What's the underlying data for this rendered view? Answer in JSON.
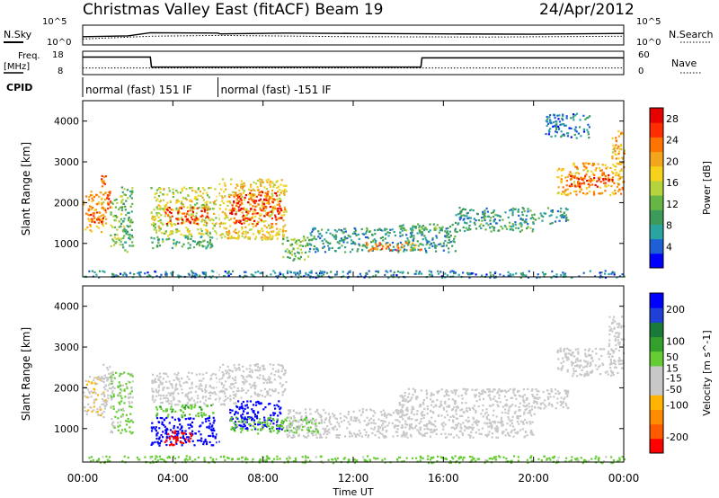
{
  "header": {
    "title": "Christmas Valley East (fitACF) Beam 19",
    "date": "24/Apr/2012"
  },
  "noise_panel": {
    "left_label": "N.Sky",
    "right_label": "N.Search",
    "tick_high": "10^5",
    "tick_low": "10^0"
  },
  "freq_panel": {
    "left_label": "Freq.",
    "unit_label": "[MHz]",
    "tick_high": "18",
    "tick_low": "8",
    "right_label": "Nave",
    "right_tick_high": "60",
    "right_tick_low": "0"
  },
  "cpid": {
    "label": "CPID",
    "segments": [
      {
        "label": "normal (fast) 151 IF",
        "start_hour": 0.0,
        "end_hour": 6.0
      },
      {
        "label": "normal (fast) -151 IF",
        "start_hour": 6.0,
        "end_hour": 24.0
      }
    ]
  },
  "xaxis": {
    "label": "Time UT",
    "range_hours": [
      0,
      24
    ],
    "tick_hours": [
      0,
      4,
      8,
      12,
      16,
      20,
      24
    ],
    "tick_labels": [
      "00:00",
      "04:00",
      "08:00",
      "12:00",
      "16:00",
      "20:00",
      "00:00"
    ]
  },
  "panels": [
    {
      "name": "power",
      "ylabel": "Slant Range [km]"
    },
    {
      "name": "velocity",
      "ylabel": "Slant Range [km]"
    }
  ],
  "colors": {
    "power_scale": [
      "#0000ff",
      "#1f5fd6",
      "#2aa4a0",
      "#3c9a5a",
      "#66b646",
      "#b5d33c",
      "#f6d31a",
      "#f3a51b",
      "#ff7400",
      "#ff2d00",
      "#e60000"
    ],
    "velocity_scale": [
      "#ff0000",
      "#ff5a00",
      "#ff8c00",
      "#ffb400",
      "#c8c8c8",
      "#c8c8c8",
      "#66cc33",
      "#33a02c",
      "#1a7a3a",
      "#1f3fd6",
      "#0000ff"
    ]
  },
  "chart_data": {
    "type": "heatmap",
    "title": "Christmas Valley East (fitACF) Beam 19",
    "xlabel": "Time UT",
    "x_unit": "hours UT",
    "xlim": [
      0,
      24
    ],
    "ylabel": "Slant Range [km]",
    "ylim": [
      180,
      4500
    ],
    "y_ticks": [
      1000,
      2000,
      3000,
      4000
    ],
    "panels": [
      {
        "quantity": "Power",
        "colorbar_label": "Power [dB]",
        "colorbar_ticks": [
          4,
          8,
          12,
          16,
          20,
          24,
          28
        ],
        "colorbar_range": [
          0,
          30
        ],
        "regions": [
          {
            "t0": 0.0,
            "t1": 1.0,
            "r0": 1300,
            "r1": 2300,
            "value": 20
          },
          {
            "t0": 0.3,
            "t1": 0.9,
            "r0": 1500,
            "r1": 1800,
            "value": 26
          },
          {
            "t0": 0.8,
            "t1": 1.2,
            "r0": 1700,
            "r1": 2700,
            "value": 24
          },
          {
            "t0": 1.2,
            "t1": 1.8,
            "r0": 900,
            "r1": 2200,
            "value": 14
          },
          {
            "t0": 1.7,
            "t1": 2.2,
            "r0": 800,
            "r1": 2400,
            "value": 10
          },
          {
            "t0": 3.0,
            "t1": 6.0,
            "r0": 1200,
            "r1": 2400,
            "value": 16
          },
          {
            "t0": 3.6,
            "t1": 5.6,
            "r0": 1500,
            "r1": 1900,
            "value": 26
          },
          {
            "t0": 3.0,
            "t1": 6.0,
            "r0": 900,
            "r1": 1200,
            "value": 10
          },
          {
            "t0": 6.0,
            "t1": 9.0,
            "r0": 1100,
            "r1": 2600,
            "value": 18
          },
          {
            "t0": 6.5,
            "t1": 8.8,
            "r0": 1500,
            "r1": 2300,
            "value": 26
          },
          {
            "t0": 8.8,
            "t1": 10.0,
            "r0": 600,
            "r1": 1200,
            "value": 12
          },
          {
            "t0": 10.0,
            "t1": 16.5,
            "r0": 800,
            "r1": 1400,
            "value": 8
          },
          {
            "t0": 12.5,
            "t1": 15.0,
            "r0": 850,
            "r1": 1050,
            "value": 22
          },
          {
            "t0": 14.0,
            "t1": 20.0,
            "r0": 1300,
            "r1": 1500,
            "value": 10
          },
          {
            "t0": 16.5,
            "t1": 21.5,
            "r0": 1500,
            "r1": 1900,
            "value": 8
          },
          {
            "t0": 21.0,
            "t1": 24.0,
            "r0": 2200,
            "r1": 3000,
            "value": 20
          },
          {
            "t0": 21.5,
            "t1": 23.5,
            "r0": 2400,
            "r1": 2700,
            "value": 26
          },
          {
            "t0": 23.4,
            "t1": 24.0,
            "r0": 3000,
            "r1": 3800,
            "value": 20
          },
          {
            "t0": 20.5,
            "t1": 22.5,
            "r0": 3600,
            "r1": 4200,
            "value": 6
          },
          {
            "t0": 0.0,
            "t1": 24.0,
            "r0": 180,
            "r1": 350,
            "value": 6
          }
        ]
      },
      {
        "quantity": "Velocity",
        "colorbar_label": "Velocity [m s^-1]",
        "colorbar_ticks": [
          -200,
          -100,
          -50,
          -15,
          15,
          50,
          100,
          200
        ],
        "colorbar_range": [
          -250,
          250
        ],
        "regions": [
          {
            "t0": 0.0,
            "t1": 1.0,
            "r0": 1300,
            "r1": 2300,
            "value": -60
          },
          {
            "t0": 0.8,
            "t1": 1.3,
            "r0": 1600,
            "r1": 2600,
            "value": -40
          },
          {
            "t0": 1.2,
            "t1": 2.2,
            "r0": 900,
            "r1": 2400,
            "value": 30
          },
          {
            "t0": 3.0,
            "t1": 6.0,
            "r0": 1600,
            "r1": 2400,
            "value": -20
          },
          {
            "t0": 3.2,
            "t1": 5.8,
            "r0": 1300,
            "r1": 1600,
            "value": 60
          },
          {
            "t0": 3.0,
            "t1": 6.0,
            "r0": 600,
            "r1": 1300,
            "value": 230
          },
          {
            "t0": 3.6,
            "t1": 4.8,
            "r0": 600,
            "r1": 1000,
            "value": -220
          },
          {
            "t0": 6.0,
            "t1": 7.0,
            "r0": 1600,
            "r1": 2600,
            "value": -40
          },
          {
            "t0": 7.0,
            "t1": 9.0,
            "r0": 1800,
            "r1": 2600,
            "value": 0
          },
          {
            "t0": 6.5,
            "t1": 8.8,
            "r0": 1000,
            "r1": 1700,
            "value": 230
          },
          {
            "t0": 6.5,
            "t1": 10.5,
            "r0": 900,
            "r1": 1300,
            "value": 60
          },
          {
            "t0": 9.0,
            "t1": 20.0,
            "r0": 800,
            "r1": 1500,
            "value": 0
          },
          {
            "t0": 14.0,
            "t1": 21.5,
            "r0": 1500,
            "r1": 2000,
            "value": 0
          },
          {
            "t0": 21.0,
            "t1": 24.0,
            "r0": 2300,
            "r1": 3000,
            "value": 0
          },
          {
            "t0": 23.3,
            "t1": 24.0,
            "r0": 3000,
            "r1": 3800,
            "value": -30
          },
          {
            "t0": 0.0,
            "t1": 24.0,
            "r0": 180,
            "r1": 350,
            "value": 40
          }
        ]
      }
    ],
    "noise": {
      "sky_description_series": [
        {
          "t": 0,
          "v": 2.1
        },
        {
          "t": 2,
          "v": 2.3
        },
        {
          "t": 3,
          "v": 3.1
        },
        {
          "t": 6,
          "v": 3.0
        },
        {
          "t": 6.1,
          "v": 2.8
        },
        {
          "t": 9,
          "v": 3.0
        },
        {
          "t": 12,
          "v": 2.9
        },
        {
          "t": 16,
          "v": 2.8
        },
        {
          "t": 20,
          "v": 2.7
        },
        {
          "t": 24,
          "v": 2.9
        }
      ],
      "search_series": [
        {
          "t": 0,
          "v": 1.5
        },
        {
          "t": 3,
          "v": 2.2
        },
        {
          "t": 6,
          "v": 2.4
        },
        {
          "t": 12,
          "v": 2.1
        },
        {
          "t": 18,
          "v": 2.0
        },
        {
          "t": 24,
          "v": 2.2
        }
      ]
    },
    "frequency": {
      "freq_mhz": [
        {
          "t": 0,
          "v": 16.5
        },
        {
          "t": 3,
          "v": 16.5
        },
        {
          "t": 3.05,
          "v": 10.5
        },
        {
          "t": 15,
          "v": 10.5
        },
        {
          "t": 15.05,
          "v": 16.0
        },
        {
          "t": 24,
          "v": 16.0
        }
      ],
      "nave": [
        {
          "t": 0,
          "v": 20
        },
        {
          "t": 24,
          "v": 20
        }
      ]
    }
  }
}
